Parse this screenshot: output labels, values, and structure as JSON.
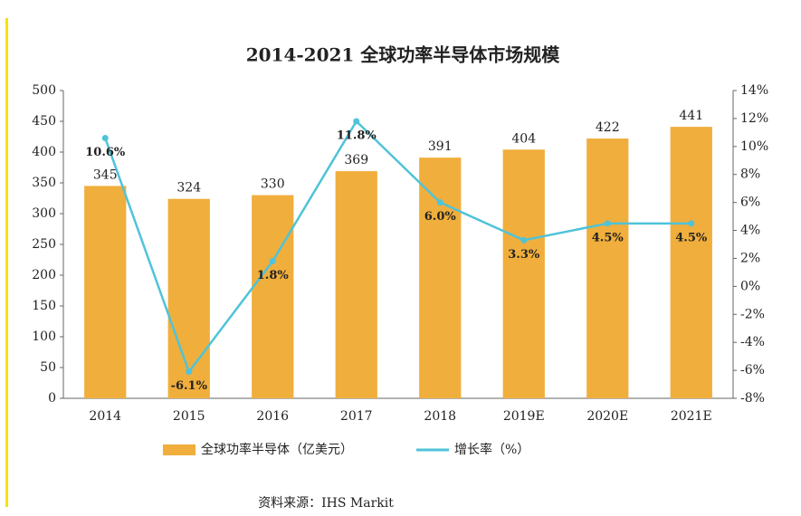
{
  "chart_data": {
    "type": "bar",
    "title": "2014-2021 全球功率半导体市场规模",
    "categories": [
      "2014",
      "2015",
      "2016",
      "2017",
      "2018",
      "2019E",
      "2020E",
      "2021E"
    ],
    "series": [
      {
        "name": "全球功率半导体（亿美元）",
        "type": "bar",
        "color": "#f0ae3c",
        "values": [
          345,
          324,
          330,
          369,
          391,
          404,
          422,
          441
        ]
      },
      {
        "name": "增长率（%）",
        "type": "line",
        "axis": "y2",
        "color": "#4fc3d9",
        "values": [
          10.6,
          -6.1,
          1.8,
          11.8,
          6.0,
          3.3,
          4.5,
          4.5
        ],
        "value_labels": [
          "10.6%",
          "-6.1%",
          "1.8%",
          "11.8%",
          "6.0%",
          "3.3%",
          "4.5%",
          "4.5%"
        ]
      }
    ],
    "ylim": [
      0,
      500
    ],
    "yticks": [
      0,
      50,
      100,
      150,
      200,
      250,
      300,
      350,
      400,
      450,
      500
    ],
    "y2lim": [
      -8,
      14
    ],
    "y2ticks": [
      {
        "value": -8,
        "label": "-8%"
      },
      {
        "value": -6,
        "label": "-6%"
      },
      {
        "value": -4,
        "label": "-4%"
      },
      {
        "value": -2,
        "label": "-2%"
      },
      {
        "value": 0,
        "label": "0%"
      },
      {
        "value": 2,
        "label": "2%"
      },
      {
        "value": 4,
        "label": "4%"
      },
      {
        "value": 6,
        "label": "6%"
      },
      {
        "value": 8,
        "label": "8%"
      },
      {
        "value": 10,
        "label": "10%"
      },
      {
        "value": 12,
        "label": "12%"
      },
      {
        "value": 14,
        "label": "14%"
      }
    ],
    "grid": false,
    "legend": "bottom",
    "source": "资料来源：IHS Markit"
  }
}
